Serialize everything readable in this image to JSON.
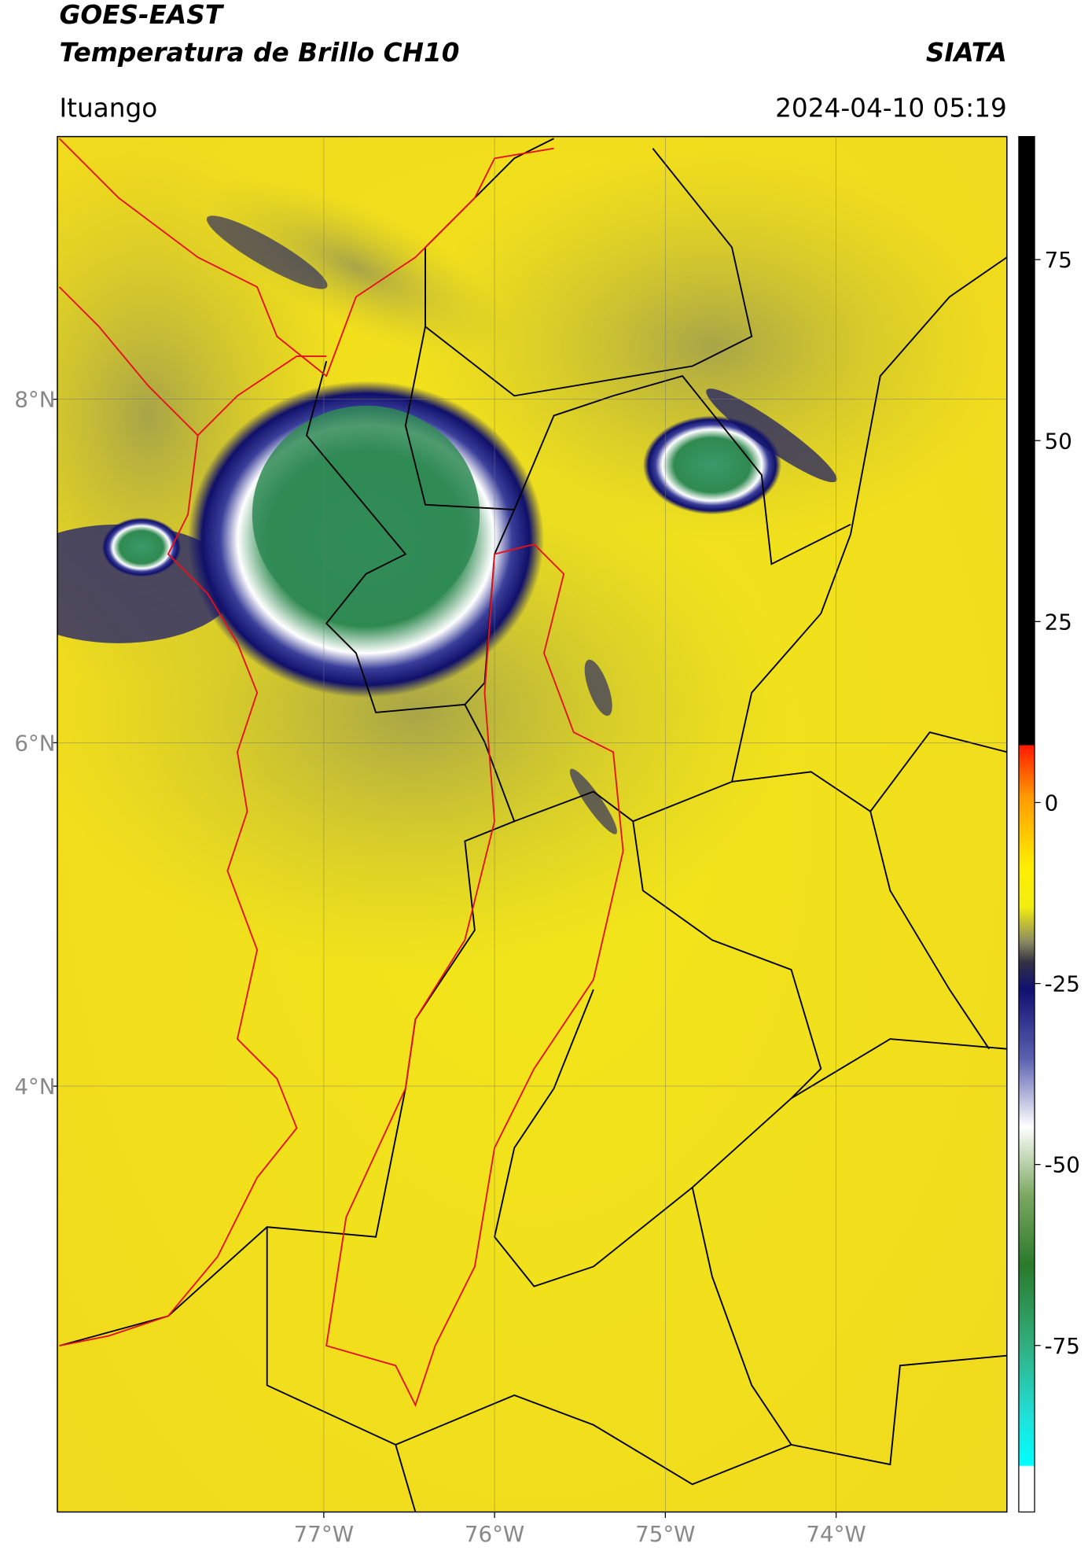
{
  "chart_data": {
    "type": "map",
    "title": "GOES-EAST",
    "subtitle": "Temperatura de Brillo CH10",
    "source": "SIATA",
    "location": "Ituango",
    "timestamp": "2024-04-10 05:19",
    "xlim": [
      -78.56,
      -73.0
    ],
    "ylim": [
      1.52,
      9.53
    ],
    "xticks": [
      {
        "value": -77,
        "label": "77°W"
      },
      {
        "value": -76,
        "label": "76°W"
      },
      {
        "value": -75,
        "label": "75°W"
      },
      {
        "value": -74,
        "label": "74°W"
      }
    ],
    "yticks": [
      {
        "value": 4,
        "label": "4°N"
      },
      {
        "value": 6,
        "label": "6°N"
      },
      {
        "value": 8,
        "label": "8°N"
      }
    ],
    "colorbar": {
      "lim": [
        -98,
        92
      ],
      "ticks": [
        -75,
        -50,
        -25,
        0,
        25,
        50,
        75
      ]
    },
    "grid": true
  }
}
